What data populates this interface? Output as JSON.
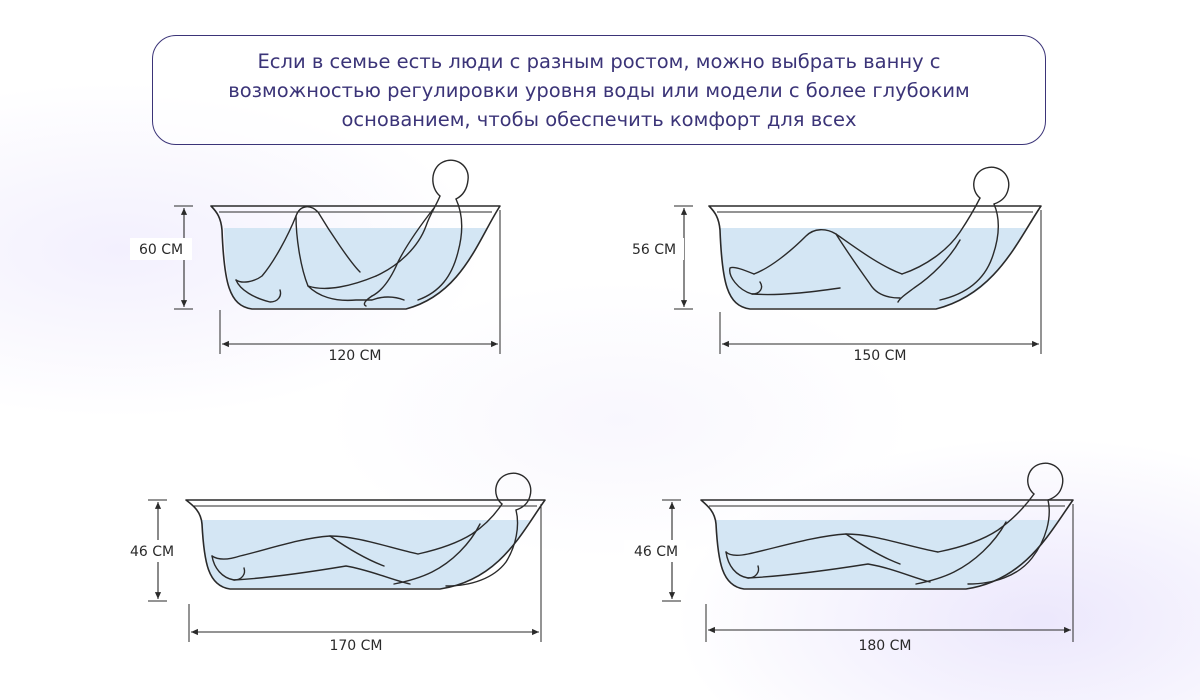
{
  "caption": {
    "text": "Если в семье есть люди с разным ростом, можно выбрать ванну с возможностью регулировки уровня воды или модели с более глубоким основанием, чтобы обеспечить комфорт для всех"
  },
  "baths": [
    {
      "height_label": "60 СМ",
      "length_label": "120 СМ"
    },
    {
      "height_label": "56 СМ",
      "length_label": "150 СМ"
    },
    {
      "height_label": "46 СМ",
      "length_label": "170 СМ"
    },
    {
      "height_label": "46 СМ",
      "length_label": "180 СМ"
    }
  ],
  "colors": {
    "accent": "#3b3478",
    "water": "#d4e6f4",
    "line": "#2a2a2a"
  }
}
